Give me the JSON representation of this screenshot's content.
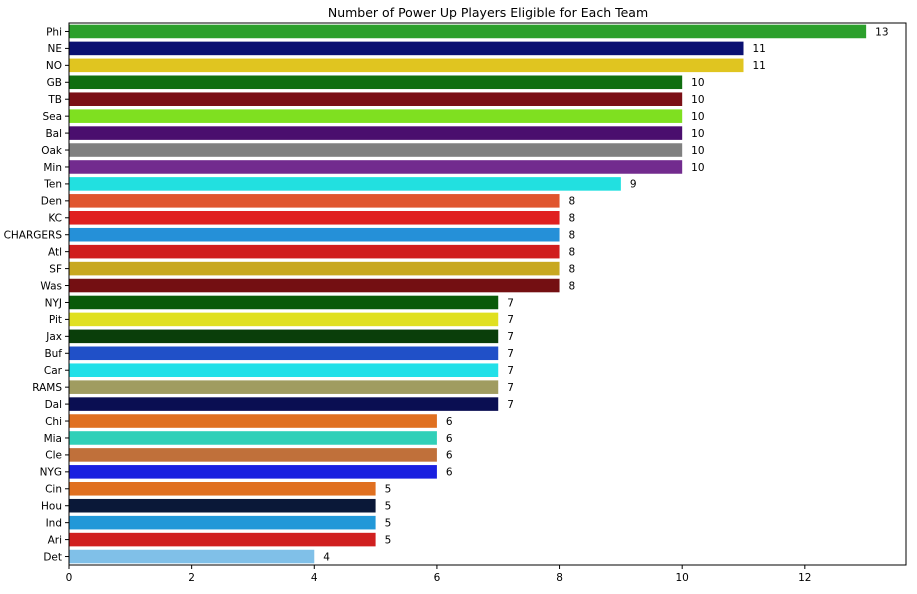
{
  "chart_data": {
    "type": "bar",
    "orientation": "horizontal",
    "title": "Number of Power Up Players Eligible for Each Team",
    "xlabel": "",
    "ylabel": "",
    "xlim": [
      0,
      13.65
    ],
    "xticks": [
      0,
      2,
      4,
      6,
      8,
      10,
      12
    ],
    "grid": false,
    "data_labels": true,
    "categories": [
      "Phi",
      "NE",
      "NO",
      "GB",
      "TB",
      "Sea",
      "Bal",
      "Oak",
      "Min",
      "Ten",
      "Den",
      "KC",
      "CHARGERS",
      "Atl",
      "SF",
      "Was",
      "NYJ",
      "Pit",
      "Jax",
      "Buf",
      "Car",
      "RAMS",
      "Dal",
      "Chi",
      "Mia",
      "Cle",
      "NYG",
      "Cin",
      "Hou",
      "Ind",
      "Ari",
      "Det"
    ],
    "values": [
      13,
      11,
      11,
      10,
      10,
      10,
      10,
      10,
      10,
      9,
      8,
      8,
      8,
      8,
      8,
      8,
      7,
      7,
      7,
      7,
      7,
      7,
      7,
      6,
      6,
      6,
      6,
      5,
      5,
      5,
      5,
      4
    ],
    "colors": [
      "#2ca02c",
      "#0b1072",
      "#e0c520",
      "#0f6e0f",
      "#7b1016",
      "#7fe020",
      "#4a0e6e",
      "#808080",
      "#722b8e",
      "#22e0e0",
      "#e0552e",
      "#e02020",
      "#2590d8",
      "#d01e1e",
      "#c8a820",
      "#740f12",
      "#0a5a0a",
      "#e0e020",
      "#0a3e0a",
      "#2050c8",
      "#22e0e8",
      "#a09c60",
      "#0a0e52",
      "#e07020",
      "#30d0b8",
      "#c0703a",
      "#1a20e0",
      "#e07020",
      "#0a1838",
      "#2298d8",
      "#d02020",
      "#80c0e8"
    ]
  }
}
